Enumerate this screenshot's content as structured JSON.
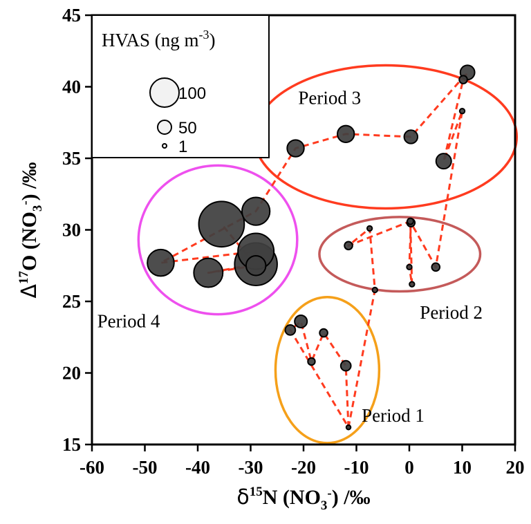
{
  "chart_data": {
    "type": "scatter",
    "title": "",
    "xlabel": {
      "base": "δ",
      "sup": "15",
      "main": "N (NO",
      "sub": "3",
      "sup2": "-",
      "tail": ") /‰"
    },
    "ylabel": {
      "base": "Δ",
      "sup": "17",
      "main": "O (NO",
      "sub": "3",
      "sup2": "-",
      "tail": ") /‰"
    },
    "xlim": [
      -60,
      20
    ],
    "ylim": [
      15,
      45
    ],
    "xticks": [
      -60,
      -50,
      -40,
      -30,
      -20,
      -10,
      0,
      10,
      20
    ],
    "yticks": [
      15,
      20,
      25,
      30,
      35,
      40,
      45
    ],
    "xtick_labels": [
      "-60",
      "-50",
      "-40",
      "-30",
      "-20",
      "-10",
      "0",
      "10",
      "20"
    ],
    "ytick_labels": [
      "15",
      "20",
      "25",
      "30",
      "35",
      "40",
      "45"
    ],
    "grid": false,
    "size_legend": {
      "title_main": "HVAS (ng m",
      "title_sup": "-3",
      "title_tail": ")",
      "placement": "top-left",
      "entries": [
        {
          "label": "100",
          "value": 100
        },
        {
          "label": "50",
          "value": 50
        },
        {
          "label": "1",
          "value": 1
        }
      ]
    },
    "line_color": "#ff3b1f",
    "marker_color": "#404040",
    "periods": [
      {
        "label": "Period 1",
        "color": "#f5a01a",
        "label_anchor": [
          -9,
          16.6
        ],
        "ellipse": {
          "cx": -15.5,
          "cy": 20.2,
          "rx": 9.8,
          "ry": 5.1
        }
      },
      {
        "label": "Period 2",
        "color": "#c45a5a",
        "label_anchor": [
          2,
          23.8
        ],
        "ellipse": {
          "cx": -1.8,
          "cy": 28.3,
          "rx": 15.2,
          "ry": 2.6
        }
      },
      {
        "label": "Period 3",
        "color": "#ff3b1f",
        "label_anchor": [
          -21,
          38.8
        ],
        "ellipse": {
          "cx": -4.5,
          "cy": 36.5,
          "rx": 24.8,
          "ry": 5.0
        }
      },
      {
        "label": "Period 4",
        "color": "#ee50ee",
        "label_anchor": [
          -59,
          23.2
        ],
        "ellipse": {
          "cx": -36.2,
          "cy": 29.3,
          "rx": 15.0,
          "ry": 5.2
        }
      }
    ],
    "series": [
      {
        "x": -11.5,
        "y": 16.2,
        "size": 1
      },
      {
        "x": -12,
        "y": 20.5,
        "size": 8
      },
      {
        "x": -16.2,
        "y": 22.8,
        "size": 5
      },
      {
        "x": -18.5,
        "y": 20.8,
        "size": 4
      },
      {
        "x": -20.5,
        "y": 23.6,
        "size": 12
      },
      {
        "x": -22.5,
        "y": 23.0,
        "size": 8
      },
      {
        "x": -11.5,
        "y": 16.2,
        "size": 1
      },
      {
        "x": -6.5,
        "y": 25.8,
        "size": 2
      },
      {
        "x": -7.5,
        "y": 30.1,
        "size": 2
      },
      {
        "x": -11.5,
        "y": 28.9,
        "size": 5
      },
      {
        "x": 0.2,
        "y": 30.6,
        "size": 3
      },
      {
        "x": 0.5,
        "y": 26.2,
        "size": 2
      },
      {
        "x": 0,
        "y": 27.4,
        "size": 2
      },
      {
        "x": 0.3,
        "y": 30.5,
        "size": 5
      },
      {
        "x": 5,
        "y": 27.4,
        "size": 5
      },
      {
        "x": 10,
        "y": 38.3,
        "size": 2
      },
      {
        "x": 6.5,
        "y": 34.8,
        "size": 18
      },
      {
        "x": 10.2,
        "y": 40.5,
        "size": 5
      },
      {
        "x": 11,
        "y": 41.0,
        "size": 16
      },
      {
        "x": 0.3,
        "y": 36.5,
        "size": 14
      },
      {
        "x": -12,
        "y": 36.7,
        "size": 22
      },
      {
        "x": -21.5,
        "y": 35.7,
        "size": 22
      },
      {
        "x": -29,
        "y": 31.3,
        "size": 60
      },
      {
        "x": -47,
        "y": 27.7,
        "size": 55
      },
      {
        "x": -29,
        "y": 28.5,
        "size": 100
      },
      {
        "x": -29,
        "y": 27.6,
        "size": 140
      },
      {
        "x": -38,
        "y": 27.0,
        "size": 65
      },
      {
        "x": -29,
        "y": 27.5,
        "size": 30
      },
      {
        "x": -35.5,
        "y": 30.4,
        "size": 160
      }
    ]
  }
}
